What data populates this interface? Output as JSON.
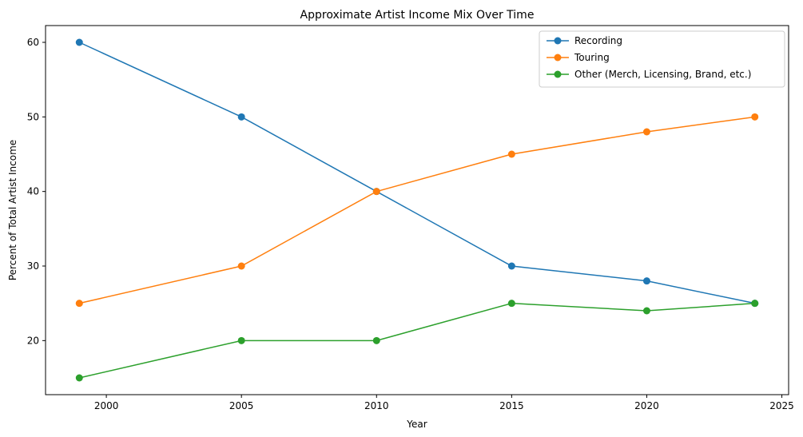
{
  "chart_data": {
    "type": "line",
    "title": "Approximate Artist Income Mix Over Time",
    "xlabel": "Year",
    "ylabel": "Percent of Total Artist Income",
    "x": [
      1999,
      2005,
      2010,
      2015,
      2020,
      2024
    ],
    "series": [
      {
        "name": "Recording",
        "color": "#1f77b4",
        "values": [
          60,
          50,
          40,
          30,
          28,
          25
        ]
      },
      {
        "name": "Touring",
        "color": "#ff7f0e",
        "values": [
          25,
          30,
          40,
          45,
          48,
          50
        ]
      },
      {
        "name": "Other (Merch, Licensing, Brand, etc.)",
        "color": "#2ca02c",
        "values": [
          15,
          20,
          20,
          25,
          24,
          25
        ]
      }
    ],
    "xticks": [
      2000,
      2005,
      2010,
      2015,
      2020,
      2025
    ],
    "yticks": [
      20,
      30,
      40,
      50,
      60
    ],
    "xlim": [
      1997.75,
      2025.25
    ],
    "ylim": [
      12.75,
      62.25
    ],
    "grid": false,
    "legend_position": "upper right",
    "markers": "circle"
  }
}
